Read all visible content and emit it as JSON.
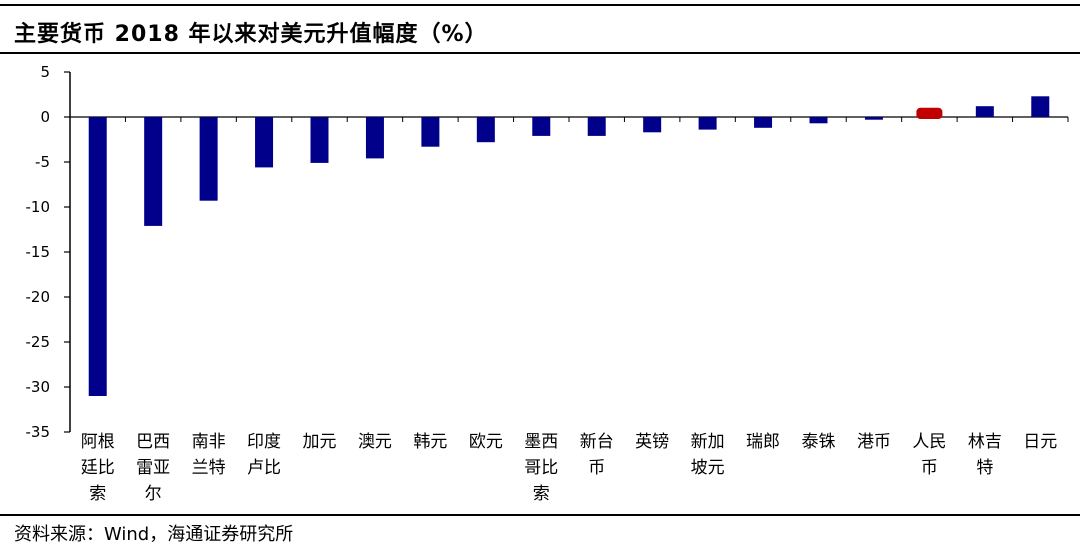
{
  "header": {
    "title": "主要货币 2018 年以来对美元升值幅度（%）"
  },
  "footer": {
    "source": "资料来源：Wind，海通证券研究所"
  },
  "colors": {
    "bar": "#00008B",
    "highlight": "#C00000",
    "axis": "#000000"
  },
  "chart_data": {
    "type": "bar",
    "title": "主要货币 2018 年以来对美元升值幅度（%）",
    "xlabel": "",
    "ylabel": "",
    "ylim": [
      -35,
      5
    ],
    "yticks": [
      5,
      0,
      -5,
      -10,
      -15,
      -20,
      -25,
      -30,
      -35
    ],
    "grid": false,
    "legend": "none",
    "highlight_category": "人民币",
    "categories": [
      "阿根廷比索",
      "巴西雷亚尔",
      "南非兰特",
      "印度卢比",
      "加元",
      "澳元",
      "韩元",
      "欧元",
      "墨西哥比索",
      "新台币",
      "英镑",
      "新加坡元",
      "瑞郎",
      "泰铢",
      "港币",
      "人民币",
      "林吉特",
      "日元"
    ],
    "category_label_lines": [
      [
        "阿根",
        "廷比",
        "索"
      ],
      [
        "巴西",
        "雷亚",
        "尔"
      ],
      [
        "南非",
        "兰特"
      ],
      [
        "印度",
        "卢比"
      ],
      [
        "加元"
      ],
      [
        "澳元"
      ],
      [
        "韩元"
      ],
      [
        "欧元"
      ],
      [
        "墨西",
        "哥比",
        "索"
      ],
      [
        "新台",
        "币"
      ],
      [
        "英镑"
      ],
      [
        "新加",
        "坡元"
      ],
      [
        "瑞郎"
      ],
      [
        "泰铢"
      ],
      [
        "港币"
      ],
      [
        "人民",
        "币"
      ],
      [
        "林吉",
        "特"
      ],
      [
        "日元"
      ]
    ],
    "values": [
      -31.0,
      -12.1,
      -9.3,
      -5.6,
      -5.1,
      -4.6,
      -3.3,
      -2.8,
      -2.1,
      -2.1,
      -1.7,
      -1.4,
      -1.2,
      -0.7,
      -0.3,
      0.8,
      1.2,
      2.3
    ]
  }
}
